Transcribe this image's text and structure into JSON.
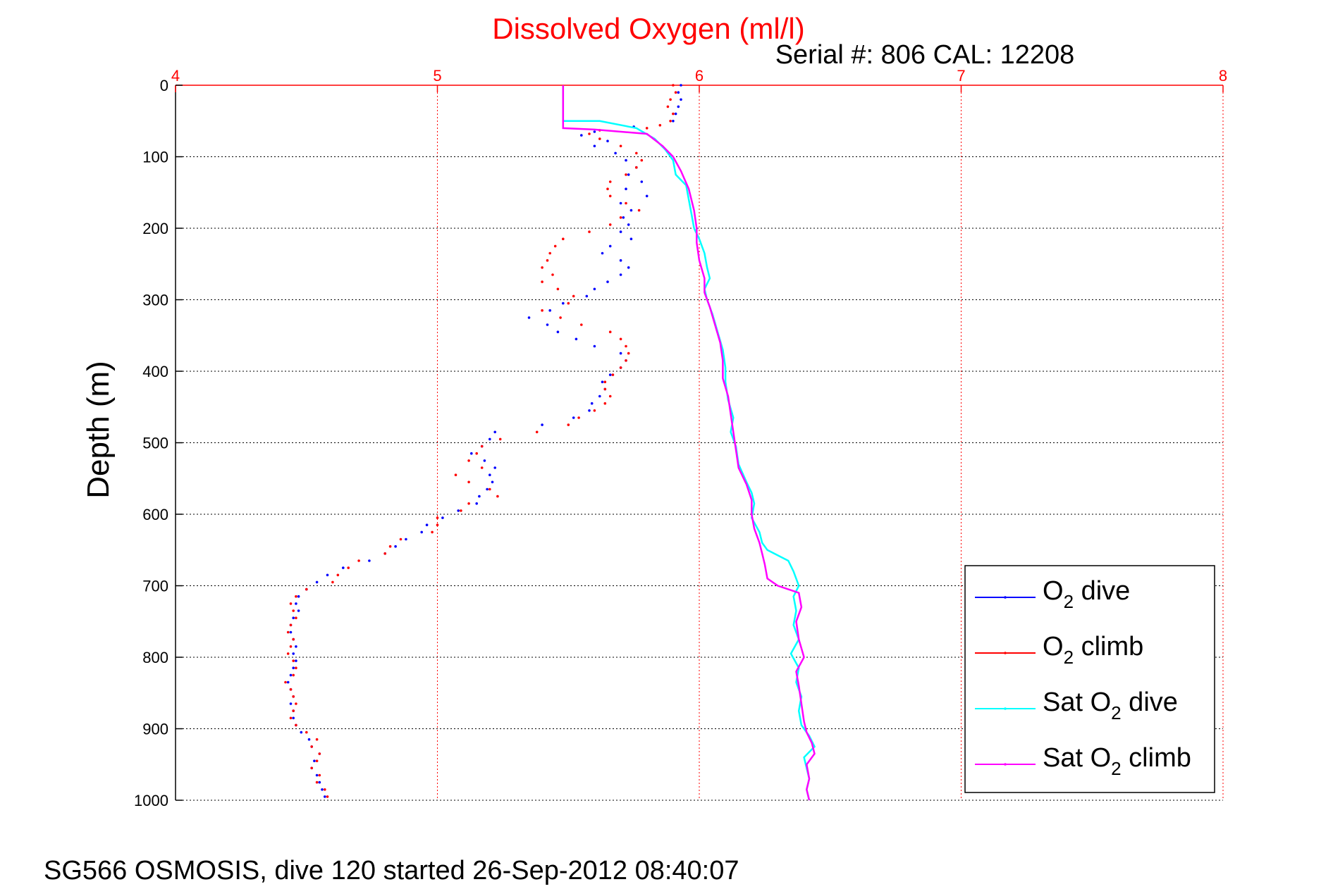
{
  "chart_data": {
    "type": "scatter",
    "title": "Dissolved Oxygen (ml/l)",
    "annotation": "Serial #: 806  CAL: 12208",
    "footer": "SG566 OSMOSIS, dive 120 started 26-Sep-2012 08:40:07",
    "xlabel": "",
    "ylabel": "Depth (m)",
    "xlim": [
      4,
      8
    ],
    "ylim": [
      0,
      1000
    ],
    "y_reversed": true,
    "x_axis_position": "top",
    "x_ticks": [
      4,
      5,
      6,
      7,
      8
    ],
    "y_ticks": [
      0,
      100,
      200,
      300,
      400,
      500,
      600,
      700,
      800,
      900,
      1000
    ],
    "grid": true,
    "legend_position": "bottom-right",
    "legend": [
      {
        "prefix": "O",
        "sub": "2",
        "suffix": " dive"
      },
      {
        "prefix": "O",
        "sub": "2",
        "suffix": " climb"
      },
      {
        "prefix": "Sat O",
        "sub": "2",
        "suffix": " dive"
      },
      {
        "prefix": "Sat O",
        "sub": "2",
        "suffix": " climb"
      }
    ],
    "series": [
      {
        "key": "o2_dive",
        "color": "#0000ff",
        "style": "dots",
        "points": [
          [
            5.93,
            0
          ],
          [
            5.92,
            10
          ],
          [
            5.93,
            20
          ],
          [
            5.92,
            30
          ],
          [
            5.91,
            40
          ],
          [
            5.9,
            50
          ],
          [
            5.75,
            58
          ],
          [
            5.6,
            65
          ],
          [
            5.55,
            70
          ],
          [
            5.65,
            78
          ],
          [
            5.6,
            85
          ],
          [
            5.68,
            95
          ],
          [
            5.72,
            105
          ],
          [
            5.76,
            115
          ],
          [
            5.73,
            125
          ],
          [
            5.78,
            135
          ],
          [
            5.72,
            145
          ],
          [
            5.8,
            155
          ],
          [
            5.7,
            165
          ],
          [
            5.74,
            175
          ],
          [
            5.71,
            185
          ],
          [
            5.73,
            195
          ],
          [
            5.7,
            205
          ],
          [
            5.74,
            215
          ],
          [
            5.66,
            225
          ],
          [
            5.63,
            235
          ],
          [
            5.7,
            245
          ],
          [
            5.73,
            255
          ],
          [
            5.7,
            265
          ],
          [
            5.65,
            275
          ],
          [
            5.6,
            285
          ],
          [
            5.57,
            295
          ],
          [
            5.48,
            305
          ],
          [
            5.43,
            315
          ],
          [
            5.35,
            325
          ],
          [
            5.42,
            335
          ],
          [
            5.46,
            345
          ],
          [
            5.53,
            355
          ],
          [
            5.6,
            365
          ],
          [
            5.7,
            375
          ],
          [
            5.72,
            385
          ],
          [
            5.7,
            395
          ],
          [
            5.66,
            405
          ],
          [
            5.63,
            415
          ],
          [
            5.64,
            425
          ],
          [
            5.62,
            435
          ],
          [
            5.59,
            445
          ],
          [
            5.58,
            455
          ],
          [
            5.52,
            465
          ],
          [
            5.4,
            475
          ],
          [
            5.22,
            485
          ],
          [
            5.2,
            495
          ],
          [
            5.17,
            505
          ],
          [
            5.13,
            515
          ],
          [
            5.18,
            525
          ],
          [
            5.22,
            535
          ],
          [
            5.2,
            545
          ],
          [
            5.21,
            555
          ],
          [
            5.19,
            565
          ],
          [
            5.16,
            575
          ],
          [
            5.15,
            585
          ],
          [
            5.08,
            595
          ],
          [
            5.02,
            605
          ],
          [
            4.96,
            615
          ],
          [
            4.94,
            625
          ],
          [
            4.88,
            635
          ],
          [
            4.84,
            645
          ],
          [
            4.8,
            655
          ],
          [
            4.74,
            665
          ],
          [
            4.64,
            675
          ],
          [
            4.58,
            685
          ],
          [
            4.54,
            695
          ],
          [
            4.5,
            705
          ],
          [
            4.47,
            715
          ],
          [
            4.46,
            725
          ],
          [
            4.47,
            735
          ],
          [
            4.45,
            745
          ],
          [
            4.44,
            755
          ],
          [
            4.44,
            765
          ],
          [
            4.45,
            775
          ],
          [
            4.46,
            785
          ],
          [
            4.45,
            795
          ],
          [
            4.46,
            805
          ],
          [
            4.45,
            815
          ],
          [
            4.44,
            825
          ],
          [
            4.43,
            835
          ],
          [
            4.44,
            845
          ],
          [
            4.45,
            855
          ],
          [
            4.44,
            865
          ],
          [
            4.45,
            875
          ],
          [
            4.45,
            885
          ],
          [
            4.46,
            895
          ],
          [
            4.48,
            905
          ],
          [
            4.51,
            915
          ],
          [
            4.52,
            925
          ],
          [
            4.55,
            935
          ],
          [
            4.53,
            945
          ],
          [
            4.52,
            955
          ],
          [
            4.54,
            965
          ],
          [
            4.55,
            975
          ],
          [
            4.56,
            985
          ],
          [
            4.57,
            995
          ]
        ]
      },
      {
        "key": "o2_climb",
        "color": "#ff0000",
        "style": "dots",
        "points": [
          [
            5.9,
            0
          ],
          [
            5.91,
            10
          ],
          [
            5.89,
            20
          ],
          [
            5.88,
            30
          ],
          [
            5.9,
            40
          ],
          [
            5.89,
            50
          ],
          [
            5.85,
            56
          ],
          [
            5.8,
            60
          ],
          [
            5.62,
            63
          ],
          [
            5.58,
            68
          ],
          [
            5.62,
            75
          ],
          [
            5.7,
            85
          ],
          [
            5.76,
            95
          ],
          [
            5.78,
            105
          ],
          [
            5.76,
            115
          ],
          [
            5.72,
            125
          ],
          [
            5.66,
            135
          ],
          [
            5.65,
            145
          ],
          [
            5.66,
            155
          ],
          [
            5.72,
            165
          ],
          [
            5.77,
            175
          ],
          [
            5.7,
            185
          ],
          [
            5.66,
            195
          ],
          [
            5.58,
            205
          ],
          [
            5.48,
            215
          ],
          [
            5.45,
            225
          ],
          [
            5.43,
            235
          ],
          [
            5.42,
            245
          ],
          [
            5.4,
            255
          ],
          [
            5.44,
            265
          ],
          [
            5.4,
            275
          ],
          [
            5.46,
            285
          ],
          [
            5.52,
            295
          ],
          [
            5.5,
            305
          ],
          [
            5.4,
            315
          ],
          [
            5.47,
            325
          ],
          [
            5.55,
            335
          ],
          [
            5.66,
            345
          ],
          [
            5.7,
            355
          ],
          [
            5.72,
            365
          ],
          [
            5.73,
            375
          ],
          [
            5.72,
            385
          ],
          [
            5.7,
            395
          ],
          [
            5.67,
            405
          ],
          [
            5.64,
            415
          ],
          [
            5.64,
            425
          ],
          [
            5.66,
            435
          ],
          [
            5.64,
            445
          ],
          [
            5.6,
            455
          ],
          [
            5.54,
            465
          ],
          [
            5.5,
            475
          ],
          [
            5.38,
            485
          ],
          [
            5.24,
            495
          ],
          [
            5.17,
            505
          ],
          [
            5.15,
            515
          ],
          [
            5.12,
            525
          ],
          [
            5.17,
            535
          ],
          [
            5.07,
            545
          ],
          [
            5.12,
            555
          ],
          [
            5.2,
            565
          ],
          [
            5.23,
            575
          ],
          [
            5.12,
            585
          ],
          [
            5.09,
            595
          ],
          [
            5.0,
            605
          ],
          [
            5.0,
            615
          ],
          [
            4.98,
            625
          ],
          [
            4.86,
            635
          ],
          [
            4.82,
            645
          ],
          [
            4.8,
            655
          ],
          [
            4.7,
            665
          ],
          [
            4.66,
            675
          ],
          [
            4.62,
            685
          ],
          [
            4.6,
            695
          ],
          [
            4.5,
            705
          ],
          [
            4.46,
            715
          ],
          [
            4.44,
            725
          ],
          [
            4.45,
            735
          ],
          [
            4.46,
            745
          ],
          [
            4.44,
            755
          ],
          [
            4.43,
            765
          ],
          [
            4.45,
            775
          ],
          [
            4.44,
            785
          ],
          [
            4.43,
            795
          ],
          [
            4.45,
            805
          ],
          [
            4.46,
            815
          ],
          [
            4.45,
            825
          ],
          [
            4.42,
            835
          ],
          [
            4.44,
            845
          ],
          [
            4.45,
            855
          ],
          [
            4.46,
            865
          ],
          [
            4.45,
            875
          ],
          [
            4.44,
            885
          ],
          [
            4.46,
            895
          ],
          [
            4.5,
            905
          ],
          [
            4.54,
            915
          ],
          [
            4.52,
            925
          ],
          [
            4.55,
            935
          ],
          [
            4.54,
            945
          ],
          [
            4.52,
            955
          ],
          [
            4.55,
            965
          ],
          [
            4.54,
            975
          ],
          [
            4.57,
            985
          ],
          [
            4.58,
            995
          ]
        ]
      },
      {
        "key": "sat_dive",
        "color": "#00ffff",
        "style": "line",
        "points": [
          [
            5.48,
            0
          ],
          [
            5.48,
            50
          ],
          [
            5.62,
            50
          ],
          [
            5.76,
            60
          ],
          [
            5.83,
            75
          ],
          [
            5.87,
            90
          ],
          [
            5.9,
            105
          ],
          [
            5.91,
            125
          ],
          [
            5.95,
            140
          ],
          [
            5.96,
            160
          ],
          [
            5.97,
            180
          ],
          [
            5.98,
            200
          ],
          [
            6.0,
            215
          ],
          [
            6.02,
            235
          ],
          [
            6.03,
            255
          ],
          [
            6.04,
            270
          ],
          [
            6.02,
            285
          ],
          [
            6.03,
            300
          ],
          [
            6.05,
            320
          ],
          [
            6.07,
            345
          ],
          [
            6.09,
            370
          ],
          [
            6.1,
            395
          ],
          [
            6.1,
            415
          ],
          [
            6.11,
            440
          ],
          [
            6.13,
            465
          ],
          [
            6.12,
            485
          ],
          [
            6.14,
            505
          ],
          [
            6.15,
            530
          ],
          [
            6.18,
            555
          ],
          [
            6.2,
            570
          ],
          [
            6.21,
            585
          ],
          [
            6.2,
            605
          ],
          [
            6.23,
            625
          ],
          [
            6.24,
            640
          ],
          [
            6.26,
            650
          ],
          [
            6.34,
            665
          ],
          [
            6.36,
            680
          ],
          [
            6.38,
            700
          ],
          [
            6.36,
            715
          ],
          [
            6.37,
            735
          ],
          [
            6.36,
            755
          ],
          [
            6.38,
            775
          ],
          [
            6.35,
            795
          ],
          [
            6.38,
            815
          ],
          [
            6.37,
            835
          ],
          [
            6.39,
            855
          ],
          [
            6.38,
            875
          ],
          [
            6.39,
            895
          ],
          [
            6.42,
            910
          ],
          [
            6.44,
            925
          ],
          [
            6.4,
            940
          ],
          [
            6.41,
            955
          ],
          [
            6.42,
            970
          ],
          [
            6.41,
            985
          ],
          [
            6.42,
            1000
          ]
        ]
      },
      {
        "key": "sat_climb",
        "color": "#ff00ff",
        "style": "line",
        "points": [
          [
            5.48,
            0
          ],
          [
            5.48,
            60
          ],
          [
            5.6,
            62
          ],
          [
            5.8,
            68
          ],
          [
            5.86,
            85
          ],
          [
            5.9,
            100
          ],
          [
            5.93,
            120
          ],
          [
            5.96,
            145
          ],
          [
            5.98,
            175
          ],
          [
            5.99,
            200
          ],
          [
            5.99,
            220
          ],
          [
            6.0,
            245
          ],
          [
            6.02,
            270
          ],
          [
            6.02,
            290
          ],
          [
            6.04,
            310
          ],
          [
            6.06,
            335
          ],
          [
            6.08,
            360
          ],
          [
            6.09,
            385
          ],
          [
            6.09,
            410
          ],
          [
            6.11,
            435
          ],
          [
            6.12,
            460
          ],
          [
            6.13,
            485
          ],
          [
            6.14,
            510
          ],
          [
            6.15,
            535
          ],
          [
            6.18,
            558
          ],
          [
            6.2,
            580
          ],
          [
            6.2,
            600
          ],
          [
            6.21,
            620
          ],
          [
            6.23,
            640
          ],
          [
            6.24,
            655
          ],
          [
            6.25,
            670
          ],
          [
            6.26,
            690
          ],
          [
            6.3,
            700
          ],
          [
            6.38,
            710
          ],
          [
            6.39,
            730
          ],
          [
            6.37,
            750
          ],
          [
            6.38,
            775
          ],
          [
            6.4,
            800
          ],
          [
            6.37,
            820
          ],
          [
            6.38,
            840
          ],
          [
            6.39,
            865
          ],
          [
            6.4,
            890
          ],
          [
            6.41,
            905
          ],
          [
            6.43,
            920
          ],
          [
            6.44,
            935
          ],
          [
            6.41,
            950
          ],
          [
            6.42,
            970
          ],
          [
            6.41,
            985
          ],
          [
            6.42,
            1000
          ]
        ]
      }
    ]
  }
}
